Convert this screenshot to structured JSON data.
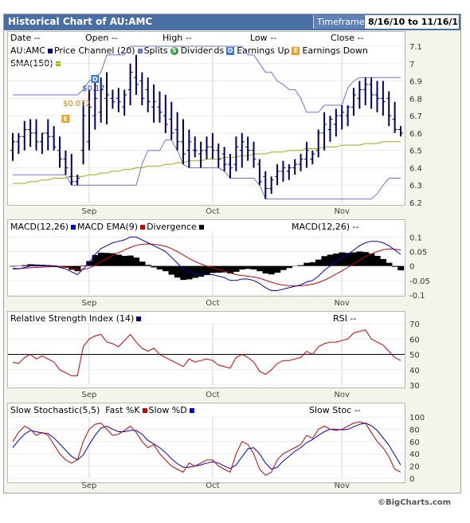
{
  "header": {
    "title": "Historical Chart of AU:AMC",
    "timeframe_label": "Timeframe",
    "timeframe_value": "8/16/10 to 11/16/10"
  },
  "price_panel": {
    "summary_labels": [
      "Date --",
      "Open --",
      "High --",
      "Low --",
      "Close --"
    ],
    "symbol": "AU:AMC",
    "legend": [
      {
        "label": "Price Channel (20)",
        "color": "#000080"
      },
      {
        "label": "Splits",
        "color": "#6a72d8"
      },
      {
        "label": "Dividends",
        "icon": "S",
        "color": "#2a9d3a"
      },
      {
        "label": "Earnings Up",
        "icon": "D",
        "color": "#3b7bd4"
      },
      {
        "label": "Earnings Down",
        "icon": "E",
        "color": "#f0a020"
      }
    ],
    "sma_label": "SMA(150)",
    "sma_color": "#b0b000",
    "dividend_annotations": [
      "$0.17",
      "$0.072"
    ],
    "y_ticks": [
      7.1,
      7,
      6.9,
      6.8,
      6.7,
      6.6,
      6.5,
      6.4,
      6.3,
      6.2
    ]
  },
  "macd_panel": {
    "legend": [
      {
        "label": "MACD(12,26)",
        "color": "#0000cc"
      },
      {
        "label": "MACD EMA(9)",
        "color": "#cc0000"
      },
      {
        "label": "Divergence",
        "color": "#000000"
      }
    ],
    "readout": "MACD(12,26) --",
    "y_ticks": [
      "0.1",
      "0.05",
      "0",
      "-0.05",
      "-0.1"
    ]
  },
  "rsi_panel": {
    "legend": [
      {
        "label": "Relative Strength Index (14)",
        "color": "#000080"
      }
    ],
    "readout": "RSI --",
    "y_ticks": [
      70,
      60,
      50,
      40,
      30
    ]
  },
  "stoch_panel": {
    "legend": [
      {
        "label": "Slow Stochastic(5,5)",
        "color": null
      },
      {
        "label": "Fast %K",
        "color": "#cc0000"
      },
      {
        "label": "Slow %D",
        "color": "#0000cc"
      }
    ],
    "readout": "Slow Stoc --",
    "y_ticks": [
      100,
      80,
      60,
      40,
      20,
      0
    ]
  },
  "x_month_labels": [
    "Sep",
    "Oct",
    "Nov"
  ],
  "footer": "©BigCharts.com",
  "chart_data": [
    {
      "type": "ohlc",
      "title": "AU:AMC",
      "ylim": [
        6.2,
        7.1
      ],
      "x": [
        "8/16",
        "8/17",
        "8/18",
        "8/19",
        "8/20",
        "8/23",
        "8/24",
        "8/25",
        "8/26",
        "8/27",
        "8/30",
        "8/31",
        "9/1",
        "9/2",
        "9/3",
        "9/6",
        "9/7",
        "9/8",
        "9/9",
        "9/10",
        "9/13",
        "9/14",
        "9/15",
        "9/16",
        "9/17",
        "9/20",
        "9/21",
        "9/22",
        "9/23",
        "9/24",
        "9/27",
        "9/28",
        "9/29",
        "9/30",
        "10/1",
        "10/4",
        "10/5",
        "10/6",
        "10/7",
        "10/8",
        "10/11",
        "10/12",
        "10/13",
        "10/14",
        "10/15",
        "10/18",
        "10/19",
        "10/20",
        "10/21",
        "10/22",
        "10/25",
        "10/26",
        "10/27",
        "10/28",
        "10/29",
        "11/1",
        "11/2",
        "11/3",
        "11/4",
        "11/5",
        "11/8",
        "11/9",
        "11/10",
        "11/11",
        "11/12",
        "11/15",
        "11/16"
      ],
      "high": [
        6.6,
        6.6,
        6.67,
        6.68,
        6.68,
        6.6,
        6.68,
        6.64,
        6.58,
        6.5,
        6.48,
        6.36,
        6.78,
        6.85,
        6.9,
        6.92,
        6.95,
        6.85,
        6.86,
        6.85,
        7.0,
        7.05,
        6.95,
        6.92,
        6.88,
        6.84,
        6.82,
        6.78,
        6.72,
        6.68,
        6.62,
        6.58,
        6.55,
        6.58,
        6.6,
        6.54,
        6.52,
        6.48,
        6.58,
        6.6,
        6.58,
        6.55,
        6.45,
        6.38,
        6.35,
        6.42,
        6.44,
        6.42,
        6.45,
        6.48,
        6.55,
        6.5,
        6.62,
        6.72,
        6.7,
        6.74,
        6.76,
        6.76,
        6.86,
        6.9,
        6.92,
        6.92,
        6.9,
        6.9,
        6.84,
        6.78,
        6.64
      ],
      "low": [
        6.44,
        6.48,
        6.5,
        6.52,
        6.5,
        6.48,
        6.5,
        6.5,
        6.4,
        6.36,
        6.3,
        6.3,
        6.42,
        6.5,
        6.62,
        6.66,
        6.65,
        6.74,
        6.72,
        6.7,
        6.76,
        6.82,
        6.76,
        6.72,
        6.66,
        6.66,
        6.6,
        6.56,
        6.5,
        6.42,
        6.4,
        6.46,
        6.4,
        6.45,
        6.45,
        6.4,
        6.38,
        6.34,
        6.38,
        6.4,
        6.44,
        6.4,
        6.3,
        6.22,
        6.25,
        6.3,
        6.32,
        6.33,
        6.36,
        6.38,
        6.4,
        6.42,
        6.46,
        6.5,
        6.55,
        6.58,
        6.62,
        6.64,
        6.7,
        6.74,
        6.76,
        6.74,
        6.72,
        6.7,
        6.64,
        6.6,
        6.58
      ],
      "open": [
        6.5,
        6.55,
        6.58,
        6.62,
        6.6,
        6.55,
        6.6,
        6.58,
        6.5,
        6.45,
        6.35,
        6.32,
        6.5,
        6.55,
        6.7,
        6.72,
        6.8,
        6.8,
        6.8,
        6.75,
        6.85,
        6.92,
        6.9,
        6.85,
        6.75,
        6.75,
        6.7,
        6.68,
        6.62,
        6.55,
        6.5,
        6.5,
        6.48,
        6.5,
        6.52,
        6.5,
        6.48,
        6.42,
        6.42,
        6.5,
        6.52,
        6.5,
        6.42,
        6.35,
        6.28,
        6.35,
        6.38,
        6.38,
        6.4,
        6.42,
        6.45,
        6.45,
        6.5,
        6.6,
        6.62,
        6.65,
        6.7,
        6.7,
        6.75,
        6.8,
        6.85,
        6.88,
        6.82,
        6.8,
        6.8,
        6.68,
        6.62
      ],
      "close": [
        6.55,
        6.58,
        6.62,
        6.6,
        6.55,
        6.6,
        6.58,
        6.52,
        6.45,
        6.4,
        6.32,
        6.34,
        6.7,
        6.75,
        6.8,
        6.85,
        6.82,
        6.78,
        6.78,
        6.82,
        6.95,
        6.88,
        6.8,
        6.78,
        6.78,
        6.72,
        6.65,
        6.6,
        6.55,
        6.48,
        6.55,
        6.5,
        6.5,
        6.52,
        6.5,
        6.45,
        6.42,
        6.4,
        6.52,
        6.55,
        6.5,
        6.45,
        6.32,
        6.28,
        6.33,
        6.38,
        6.4,
        6.4,
        6.42,
        6.45,
        6.5,
        6.48,
        6.6,
        6.65,
        6.68,
        6.7,
        6.72,
        6.75,
        6.82,
        6.85,
        6.88,
        6.82,
        6.8,
        6.78,
        6.7,
        6.62,
        6.6
      ],
      "price_channel_upper": [
        6.82,
        6.82,
        6.82,
        6.82,
        6.82,
        6.82,
        6.82,
        6.82,
        6.82,
        6.82,
        6.82,
        6.82,
        6.85,
        6.9,
        6.92,
        6.95,
        7.05,
        7.05,
        7.05,
        7.05,
        7.1,
        7.1,
        7.1,
        7.1,
        7.1,
        7.1,
        7.1,
        7.1,
        7.1,
        7.1,
        7.1,
        7.1,
        7.1,
        7.1,
        7.1,
        7.1,
        7.1,
        7.1,
        7.1,
        7.1,
        7.05,
        7.05,
        7.0,
        6.95,
        6.95,
        6.9,
        6.88,
        6.85,
        6.85,
        6.8,
        6.72,
        6.72,
        6.72,
        6.76,
        6.76,
        6.76,
        6.76,
        6.86,
        6.9,
        6.92,
        6.92,
        6.92,
        6.92,
        6.92,
        6.92,
        6.92,
        6.92
      ],
      "price_channel_lower": [
        6.36,
        6.36,
        6.36,
        6.36,
        6.36,
        6.36,
        6.36,
        6.36,
        6.36,
        6.36,
        6.3,
        6.3,
        6.3,
        6.3,
        6.3,
        6.3,
        6.3,
        6.3,
        6.3,
        6.3,
        6.3,
        6.3,
        6.42,
        6.5,
        6.5,
        6.5,
        6.56,
        6.56,
        6.5,
        6.42,
        6.4,
        6.4,
        6.4,
        6.4,
        6.4,
        6.4,
        6.38,
        6.34,
        6.34,
        6.34,
        6.34,
        6.34,
        6.3,
        6.22,
        6.22,
        6.22,
        6.22,
        6.22,
        6.22,
        6.22,
        6.22,
        6.22,
        6.22,
        6.22,
        6.22,
        6.22,
        6.22,
        6.22,
        6.22,
        6.22,
        6.22,
        6.22,
        6.25,
        6.3,
        6.34,
        6.34,
        6.34
      ],
      "sma150": [
        6.31,
        6.31,
        6.31,
        6.32,
        6.32,
        6.33,
        6.33,
        6.34,
        6.34,
        6.34,
        6.35,
        6.35,
        6.35,
        6.36,
        6.36,
        6.37,
        6.37,
        6.38,
        6.38,
        6.39,
        6.39,
        6.4,
        6.4,
        6.41,
        6.41,
        6.41,
        6.42,
        6.42,
        6.43,
        6.43,
        6.44,
        6.44,
        6.44,
        6.45,
        6.45,
        6.45,
        6.46,
        6.46,
        6.46,
        6.47,
        6.47,
        6.48,
        6.48,
        6.48,
        6.49,
        6.49,
        6.49,
        6.5,
        6.5,
        6.5,
        6.51,
        6.51,
        6.51,
        6.52,
        6.52,
        6.52,
        6.53,
        6.53,
        6.53,
        6.53,
        6.54,
        6.54,
        6.54,
        6.55,
        6.55,
        6.55,
        6.55
      ]
    },
    {
      "type": "line",
      "title": "MACD(12,26)",
      "ylim": [
        -0.1,
        0.12
      ],
      "series": [
        {
          "name": "MACD(12,26)",
          "values": [
            -0.01,
            -0.01,
            -0.005,
            0,
            0,
            0,
            0,
            0,
            -0.005,
            -0.01,
            -0.02,
            -0.03,
            -0.01,
            0.01,
            0.04,
            0.06,
            0.07,
            0.08,
            0.085,
            0.09,
            0.1,
            0.1,
            0.09,
            0.08,
            0.07,
            0.06,
            0.05,
            0.03,
            0.01,
            -0.01,
            -0.02,
            -0.025,
            -0.03,
            -0.03,
            -0.03,
            -0.035,
            -0.04,
            -0.05,
            -0.05,
            -0.045,
            -0.045,
            -0.05,
            -0.06,
            -0.075,
            -0.085,
            -0.085,
            -0.08,
            -0.075,
            -0.07,
            -0.065,
            -0.055,
            -0.05,
            -0.035,
            -0.015,
            0,
            0.015,
            0.03,
            0.04,
            0.055,
            0.07,
            0.08,
            0.085,
            0.085,
            0.08,
            0.07,
            0.055,
            0.04
          ]
        },
        {
          "name": "MACD EMA(9)",
          "values": [
            -0.008,
            -0.009,
            -0.008,
            -0.006,
            -0.005,
            -0.004,
            -0.003,
            -0.002,
            -0.003,
            -0.004,
            -0.007,
            -0.012,
            -0.012,
            -0.007,
            0.002,
            0.014,
            0.025,
            0.036,
            0.046,
            0.055,
            0.064,
            0.071,
            0.075,
            0.076,
            0.075,
            0.072,
            0.068,
            0.06,
            0.05,
            0.038,
            0.026,
            0.016,
            0.007,
            0,
            -0.006,
            -0.012,
            -0.018,
            -0.024,
            -0.03,
            -0.033,
            -0.035,
            -0.038,
            -0.042,
            -0.049,
            -0.056,
            -0.062,
            -0.066,
            -0.068,
            -0.069,
            -0.068,
            -0.066,
            -0.063,
            -0.057,
            -0.049,
            -0.039,
            -0.028,
            -0.017,
            -0.005,
            0.008,
            0.02,
            0.032,
            0.042,
            0.05,
            0.056,
            0.059,
            0.058,
            0.055
          ]
        },
        {
          "name": "Divergence",
          "values": [
            -0.002,
            -0.001,
            0.003,
            0.006,
            0.005,
            0.004,
            0.003,
            0.002,
            -0.002,
            -0.006,
            -0.013,
            -0.018,
            0.002,
            0.017,
            0.038,
            0.046,
            0.045,
            0.044,
            0.039,
            0.035,
            0.036,
            0.029,
            0.015,
            0.004,
            -0.005,
            -0.012,
            -0.018,
            -0.03,
            -0.04,
            -0.048,
            -0.046,
            -0.041,
            -0.037,
            -0.03,
            -0.024,
            -0.023,
            -0.022,
            -0.026,
            -0.02,
            -0.012,
            -0.01,
            -0.012,
            -0.018,
            -0.026,
            -0.029,
            -0.023,
            -0.014,
            -0.007,
            -0.001,
            0.003,
            0.011,
            0.013,
            0.022,
            0.034,
            0.039,
            0.043,
            0.047,
            0.045,
            0.047,
            0.05,
            0.048,
            0.043,
            0.035,
            0.024,
            0.011,
            -0.003,
            -0.015
          ]
        }
      ]
    },
    {
      "type": "line",
      "title": "Relative Strength Index (14)",
      "ylim": [
        30,
        70
      ],
      "reference_line": 50,
      "series": [
        {
          "name": "Relative Strength Index (14)",
          "values": [
            45,
            44,
            48,
            50,
            47,
            49,
            47,
            45,
            40,
            38,
            36,
            36,
            55,
            60,
            62,
            63,
            58,
            57,
            55,
            59,
            63,
            58,
            54,
            52,
            54,
            50,
            48,
            46,
            44,
            42,
            47,
            45,
            46,
            47,
            46,
            43,
            42,
            41,
            48,
            50,
            48,
            45,
            39,
            37,
            40,
            44,
            46,
            46,
            47,
            48,
            52,
            50,
            55,
            57,
            58,
            58,
            59,
            60,
            64,
            65,
            66,
            60,
            58,
            56,
            52,
            48,
            46
          ]
        }
      ]
    },
    {
      "type": "line",
      "title": "Slow Stochastic(5,5)",
      "ylim": [
        0,
        100
      ],
      "series": [
        {
          "name": "Fast %K",
          "values": [
            60,
            75,
            85,
            80,
            70,
            75,
            70,
            55,
            40,
            30,
            25,
            30,
            60,
            80,
            88,
            90,
            80,
            70,
            72,
            78,
            85,
            75,
            60,
            50,
            55,
            40,
            30,
            20,
            15,
            10,
            25,
            20,
            25,
            30,
            30,
            20,
            15,
            10,
            40,
            60,
            55,
            40,
            15,
            5,
            10,
            30,
            40,
            45,
            50,
            55,
            70,
            65,
            80,
            85,
            80,
            78,
            80,
            85,
            90,
            92,
            90,
            75,
            60,
            50,
            35,
            15,
            10
          ]
        },
        {
          "name": "Slow %D",
          "values": [
            50,
            62,
            72,
            78,
            76,
            74,
            73,
            66,
            56,
            46,
            36,
            30,
            38,
            55,
            70,
            82,
            85,
            80,
            76,
            76,
            78,
            78,
            72,
            62,
            56,
            50,
            42,
            32,
            24,
            18,
            18,
            20,
            22,
            25,
            27,
            25,
            20,
            16,
            22,
            35,
            48,
            50,
            40,
            25,
            15,
            18,
            28,
            36,
            44,
            50,
            58,
            63,
            70,
            76,
            80,
            80,
            79,
            80,
            84,
            88,
            90,
            86,
            78,
            66,
            54,
            38,
            22
          ]
        }
      ]
    }
  ]
}
